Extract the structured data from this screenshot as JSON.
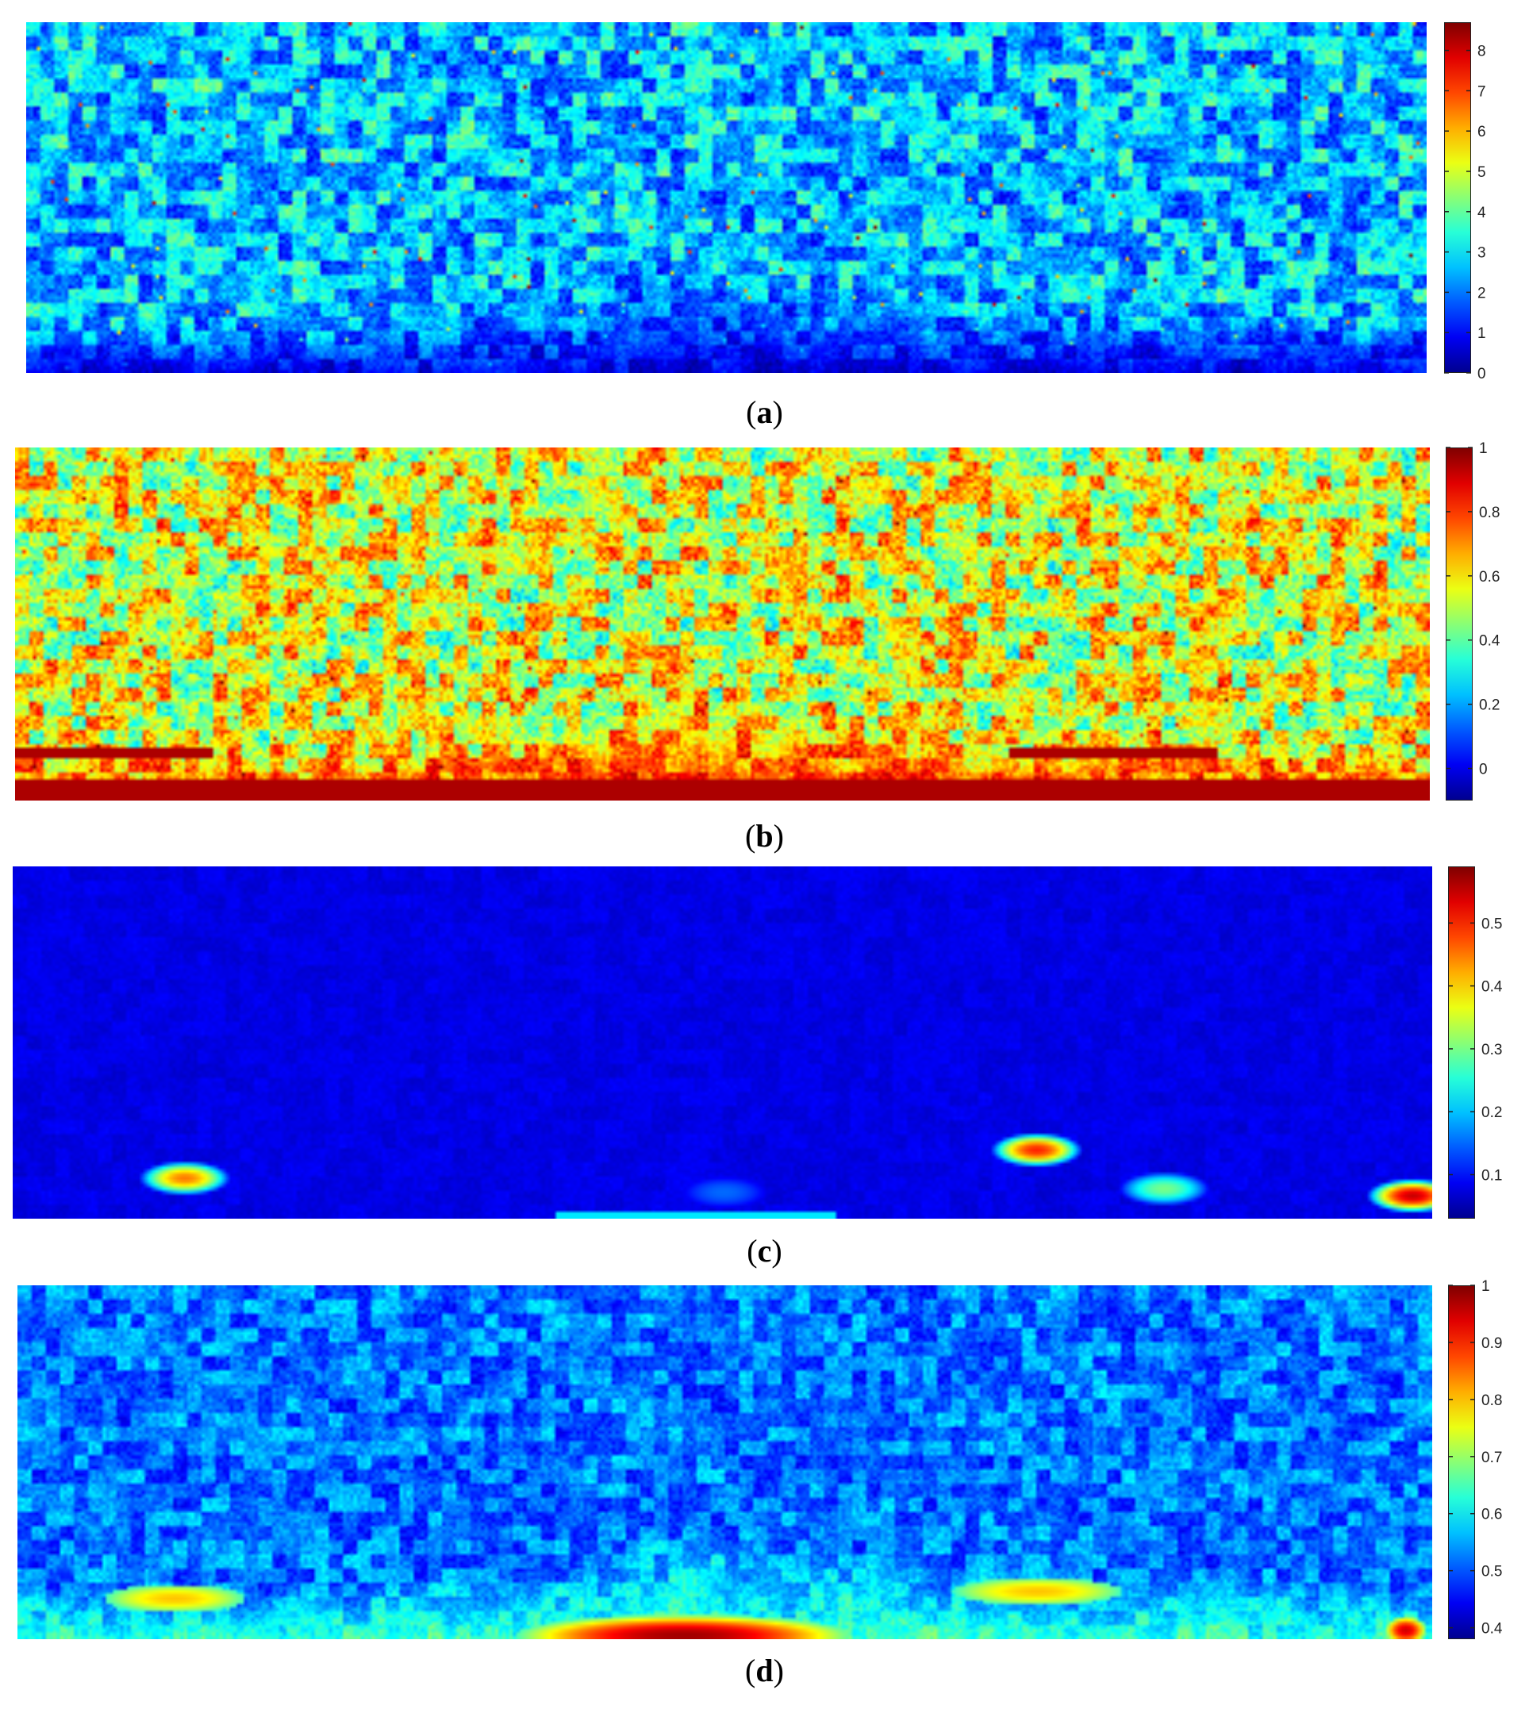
{
  "colormap": "jet",
  "colormap_stops": [
    "#00008f",
    "#0000ff",
    "#00ffff",
    "#ffff00",
    "#ff0000",
    "#800000"
  ],
  "chart_data": [
    {
      "type": "heatmap",
      "label": "a",
      "colorbar": {
        "min": 0,
        "max": 8.7,
        "ticks": [
          "0",
          "1",
          "2",
          "3",
          "4",
          "5",
          "6",
          "7",
          "8"
        ]
      },
      "background_level": 2.6,
      "surface_level": 0.7,
      "features": [
        "blocky speckle texture",
        "low band near bottom edge",
        "ridge near bottom center"
      ]
    },
    {
      "type": "heatmap",
      "label": "b",
      "colorbar": {
        "min": -0.1,
        "max": 1,
        "ticks": [
          "0",
          "0.2",
          "0.4",
          "0.6",
          "0.8",
          "1"
        ]
      },
      "background_level": 0.55,
      "surface_level": 0.85,
      "features": [
        "high band near bottom edge",
        "dark red streaks along bottom"
      ]
    },
    {
      "type": "heatmap",
      "label": "c",
      "colorbar": {
        "min": 0.03,
        "max": 0.59,
        "ticks": [
          "0.1",
          "0.2",
          "0.3",
          "0.4",
          "0.5"
        ]
      },
      "background_level": 0.06,
      "surface_level": 0.06,
      "features": [
        "localized bright spots near bottom",
        "cyan strip along bottom center"
      ]
    },
    {
      "type": "heatmap",
      "label": "d",
      "colorbar": {
        "min": 0.38,
        "max": 1,
        "ticks": [
          "0.4",
          "0.5",
          "0.6",
          "0.7",
          "0.8",
          "0.9",
          "1"
        ]
      },
      "background_level": 0.52,
      "surface_level": 0.64,
      "features": [
        "warmer band near bottom",
        "dark red hot spot at bottom center"
      ]
    }
  ],
  "captions": [
    "a",
    "b",
    "c",
    "d"
  ]
}
